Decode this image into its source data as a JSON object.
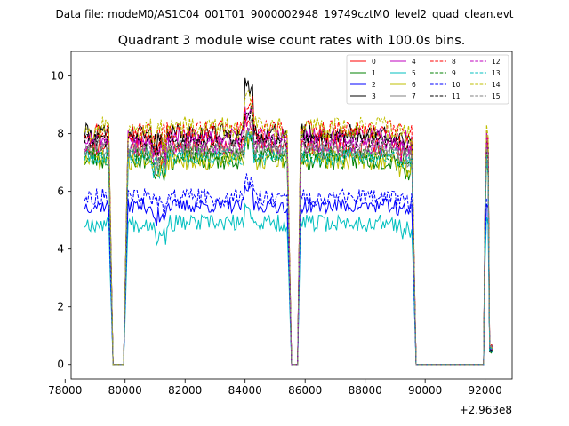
{
  "suptitle": "Data file: modeM0/AS1C04_001T01_9000002948_19749cztM0_level2_quad_clean.evt",
  "chart_data": {
    "type": "line",
    "title": "Quadrant 3 module wise count rates with 100.0s bins.",
    "xlabel": "",
    "ylabel": "",
    "offset_text": "+2.963e8",
    "xlim": [
      78200,
      92900
    ],
    "ylim": [
      -0.5,
      10.85
    ],
    "xticks": [
      78000,
      80000,
      82000,
      84000,
      86000,
      88000,
      90000,
      92000
    ],
    "xtick_labels": [
      "78000",
      "80000",
      "82000",
      "84000",
      "86000",
      "88000",
      "90000",
      "92000"
    ],
    "yticks": [
      0,
      2,
      4,
      6,
      8,
      10
    ],
    "ytick_labels": [
      "0",
      "2",
      "4",
      "6",
      "8",
      "10"
    ],
    "grid": false,
    "legend_position": "top-right",
    "shape": [
      [
        78650,
        1.0
      ],
      [
        79450,
        1.0
      ],
      [
        79600,
        0.0
      ],
      [
        79950,
        0.0
      ],
      [
        80100,
        1.0
      ],
      [
        85400,
        1.0
      ],
      [
        85550,
        0.0
      ],
      [
        85750,
        0.0
      ],
      [
        85850,
        1.0
      ],
      [
        89550,
        1.0
      ],
      [
        89700,
        0.0
      ],
      [
        91950,
        0.0
      ],
      [
        92000,
        0.72
      ],
      [
        92050,
        1.0
      ],
      [
        92100,
        0.95
      ],
      [
        92150,
        0.08
      ],
      [
        92250,
        0.07
      ]
    ],
    "series": [
      {
        "name": "0",
        "color": "#ff0000",
        "dash": "solid",
        "base": 7.6,
        "noise": 0.4,
        "peak": 0.9,
        "seed": 11
      },
      {
        "name": "1",
        "color": "#008000",
        "dash": "solid",
        "base": 7.1,
        "noise": 0.35,
        "peak": 0.7,
        "seed": 23
      },
      {
        "name": "2",
        "color": "#0000ff",
        "dash": "solid",
        "base": 5.5,
        "noise": 0.25,
        "peak": 0.6,
        "seed": 37
      },
      {
        "name": "3",
        "color": "#000000",
        "dash": "solid",
        "base": 8.0,
        "noise": 0.35,
        "peak": 1.6,
        "seed": 41
      },
      {
        "name": "4",
        "color": "#bf00bf",
        "dash": "solid",
        "base": 7.9,
        "noise": 0.3,
        "peak": 0.8,
        "seed": 53
      },
      {
        "name": "5",
        "color": "#00bfbf",
        "dash": "solid",
        "base": 4.9,
        "noise": 0.3,
        "peak": 0.4,
        "seed": 67
      },
      {
        "name": "6",
        "color": "#bfbf00",
        "dash": "solid",
        "base": 7.1,
        "noise": 0.35,
        "peak": 0.7,
        "seed": 71
      },
      {
        "name": "7",
        "color": "#808080",
        "dash": "solid",
        "base": 7.4,
        "noise": 0.3,
        "peak": 0.6,
        "seed": 83
      },
      {
        "name": "8",
        "color": "#ff0000",
        "dash": "dashed",
        "base": 8.1,
        "noise": 0.35,
        "peak": 1.0,
        "seed": 97
      },
      {
        "name": "9",
        "color": "#008000",
        "dash": "dashed",
        "base": 7.3,
        "noise": 0.3,
        "peak": 0.6,
        "seed": 101
      },
      {
        "name": "10",
        "color": "#0000ff",
        "dash": "dashed",
        "base": 5.8,
        "noise": 0.3,
        "peak": 0.6,
        "seed": 113
      },
      {
        "name": "11",
        "color": "#000000",
        "dash": "dashed",
        "base": 7.8,
        "noise": 0.3,
        "peak": 0.9,
        "seed": 127
      },
      {
        "name": "12",
        "color": "#bf00bf",
        "dash": "dashed",
        "base": 7.6,
        "noise": 0.3,
        "peak": 0.7,
        "seed": 131
      },
      {
        "name": "13",
        "color": "#00bfbf",
        "dash": "dashed",
        "base": 7.2,
        "noise": 0.3,
        "peak": 0.6,
        "seed": 149
      },
      {
        "name": "14",
        "color": "#bfbf00",
        "dash": "dashed",
        "base": 8.2,
        "noise": 0.4,
        "peak": 0.9,
        "seed": 157
      },
      {
        "name": "15",
        "color": "#808080",
        "dash": "dashed",
        "base": 7.5,
        "noise": 0.3,
        "peak": 0.7,
        "seed": 163
      }
    ]
  }
}
